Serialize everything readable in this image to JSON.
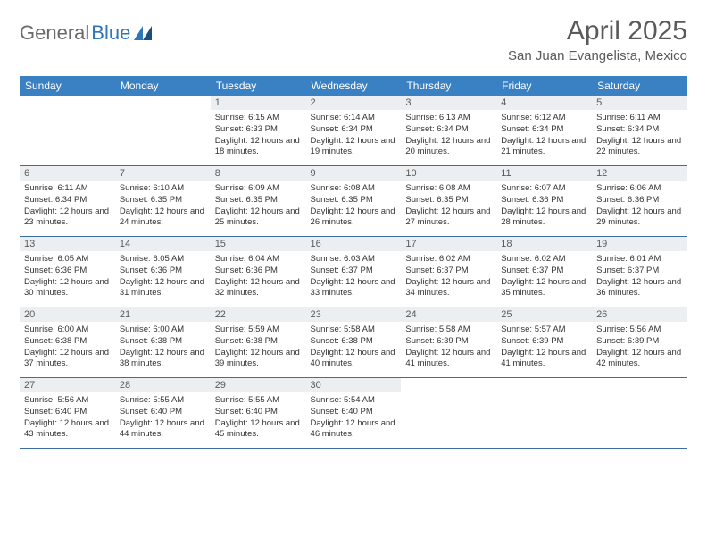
{
  "logo": {
    "part1": "General",
    "part2": "Blue"
  },
  "title": "April 2025",
  "location": "San Juan Evangelista, Mexico",
  "colors": {
    "header_bg": "#3a81c3",
    "header_fg": "#ffffff",
    "daynum_bg": "#eceff1",
    "border": "#3a6ea5",
    "title_color": "#595959",
    "logo_gray": "#6a6a6a",
    "logo_blue": "#2e76b6"
  },
  "day_headers": [
    "Sunday",
    "Monday",
    "Tuesday",
    "Wednesday",
    "Thursday",
    "Friday",
    "Saturday"
  ],
  "weeks": [
    [
      null,
      null,
      {
        "n": "1",
        "sr": "6:15 AM",
        "ss": "6:33 PM",
        "dl": "12 hours and 18 minutes."
      },
      {
        "n": "2",
        "sr": "6:14 AM",
        "ss": "6:34 PM",
        "dl": "12 hours and 19 minutes."
      },
      {
        "n": "3",
        "sr": "6:13 AM",
        "ss": "6:34 PM",
        "dl": "12 hours and 20 minutes."
      },
      {
        "n": "4",
        "sr": "6:12 AM",
        "ss": "6:34 PM",
        "dl": "12 hours and 21 minutes."
      },
      {
        "n": "5",
        "sr": "6:11 AM",
        "ss": "6:34 PM",
        "dl": "12 hours and 22 minutes."
      }
    ],
    [
      {
        "n": "6",
        "sr": "6:11 AM",
        "ss": "6:34 PM",
        "dl": "12 hours and 23 minutes."
      },
      {
        "n": "7",
        "sr": "6:10 AM",
        "ss": "6:35 PM",
        "dl": "12 hours and 24 minutes."
      },
      {
        "n": "8",
        "sr": "6:09 AM",
        "ss": "6:35 PM",
        "dl": "12 hours and 25 minutes."
      },
      {
        "n": "9",
        "sr": "6:08 AM",
        "ss": "6:35 PM",
        "dl": "12 hours and 26 minutes."
      },
      {
        "n": "10",
        "sr": "6:08 AM",
        "ss": "6:35 PM",
        "dl": "12 hours and 27 minutes."
      },
      {
        "n": "11",
        "sr": "6:07 AM",
        "ss": "6:36 PM",
        "dl": "12 hours and 28 minutes."
      },
      {
        "n": "12",
        "sr": "6:06 AM",
        "ss": "6:36 PM",
        "dl": "12 hours and 29 minutes."
      }
    ],
    [
      {
        "n": "13",
        "sr": "6:05 AM",
        "ss": "6:36 PM",
        "dl": "12 hours and 30 minutes."
      },
      {
        "n": "14",
        "sr": "6:05 AM",
        "ss": "6:36 PM",
        "dl": "12 hours and 31 minutes."
      },
      {
        "n": "15",
        "sr": "6:04 AM",
        "ss": "6:36 PM",
        "dl": "12 hours and 32 minutes."
      },
      {
        "n": "16",
        "sr": "6:03 AM",
        "ss": "6:37 PM",
        "dl": "12 hours and 33 minutes."
      },
      {
        "n": "17",
        "sr": "6:02 AM",
        "ss": "6:37 PM",
        "dl": "12 hours and 34 minutes."
      },
      {
        "n": "18",
        "sr": "6:02 AM",
        "ss": "6:37 PM",
        "dl": "12 hours and 35 minutes."
      },
      {
        "n": "19",
        "sr": "6:01 AM",
        "ss": "6:37 PM",
        "dl": "12 hours and 36 minutes."
      }
    ],
    [
      {
        "n": "20",
        "sr": "6:00 AM",
        "ss": "6:38 PM",
        "dl": "12 hours and 37 minutes."
      },
      {
        "n": "21",
        "sr": "6:00 AM",
        "ss": "6:38 PM",
        "dl": "12 hours and 38 minutes."
      },
      {
        "n": "22",
        "sr": "5:59 AM",
        "ss": "6:38 PM",
        "dl": "12 hours and 39 minutes."
      },
      {
        "n": "23",
        "sr": "5:58 AM",
        "ss": "6:38 PM",
        "dl": "12 hours and 40 minutes."
      },
      {
        "n": "24",
        "sr": "5:58 AM",
        "ss": "6:39 PM",
        "dl": "12 hours and 41 minutes."
      },
      {
        "n": "25",
        "sr": "5:57 AM",
        "ss": "6:39 PM",
        "dl": "12 hours and 41 minutes."
      },
      {
        "n": "26",
        "sr": "5:56 AM",
        "ss": "6:39 PM",
        "dl": "12 hours and 42 minutes."
      }
    ],
    [
      {
        "n": "27",
        "sr": "5:56 AM",
        "ss": "6:40 PM",
        "dl": "12 hours and 43 minutes."
      },
      {
        "n": "28",
        "sr": "5:55 AM",
        "ss": "6:40 PM",
        "dl": "12 hours and 44 minutes."
      },
      {
        "n": "29",
        "sr": "5:55 AM",
        "ss": "6:40 PM",
        "dl": "12 hours and 45 minutes."
      },
      {
        "n": "30",
        "sr": "5:54 AM",
        "ss": "6:40 PM",
        "dl": "12 hours and 46 minutes."
      },
      null,
      null,
      null
    ]
  ],
  "labels": {
    "sunrise": "Sunrise:",
    "sunset": "Sunset:",
    "daylight": "Daylight:"
  }
}
